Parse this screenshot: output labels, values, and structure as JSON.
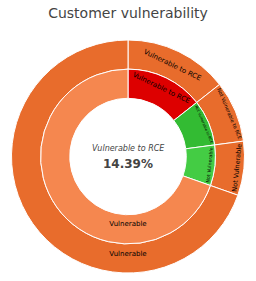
{
  "chart_data": {
    "type": "pie",
    "title": "Customer vulnerability",
    "categories": [
      "Vulnerable to RCE",
      "Not Vulnerable to RCE",
      "Not Vulnerable",
      "Vulnerable"
    ],
    "series": [
      {
        "values": [
          14.39,
          8.5,
          7.5,
          69.61
        ],
        "color": "#e86c2c"
      },
      {
        "values": [
          14.39,
          8.5,
          7.5,
          69.61
        ],
        "colors": [
          "#dd0000",
          "#33bb33",
          "#44cc44",
          "#f5874f"
        ]
      }
    ],
    "annotations": [
      "Vulnerable to RCE",
      "14.39%"
    ]
  }
}
